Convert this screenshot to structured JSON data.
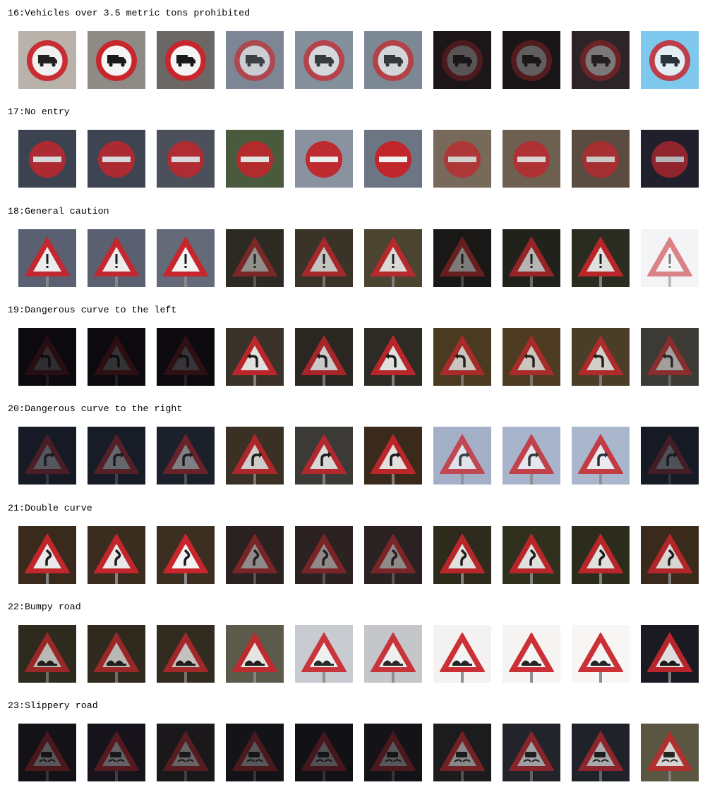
{
  "rows": [
    {
      "title": "16:Vehicles over 3.5 metric tons prohibited",
      "sign": "vehicles-over-3.5t-prohibited-sign",
      "images": [
        {
          "bg": "#b8b2aa",
          "bright": 0.95
        },
        {
          "bg": "#8e8a86",
          "bright": 1.0
        },
        {
          "bg": "#6a6764",
          "bright": 1.0
        },
        {
          "bg": "#7c8694",
          "bright": 0.65
        },
        {
          "bg": "#84909c",
          "bright": 0.72
        },
        {
          "bg": "#7c8894",
          "bright": 0.72
        },
        {
          "bg": "#1c1618",
          "bright": 0.28
        },
        {
          "bg": "#1a1618",
          "bright": 0.32
        },
        {
          "bg": "#2c2426",
          "bright": 0.4
        },
        {
          "bg": "#7ec8ee",
          "bright": 0.85
        }
      ]
    },
    {
      "title": "17:No entry",
      "sign": "no-entry-sign",
      "images": [
        {
          "bg": "#3c4250",
          "bright": 0.85
        },
        {
          "bg": "#3e4452",
          "bright": 0.85
        },
        {
          "bg": "#4c505a",
          "bright": 0.85
        },
        {
          "bg": "#4a5a3c",
          "bright": 0.9
        },
        {
          "bg": "#8a92a0",
          "bright": 0.95
        },
        {
          "bg": "#6c7682",
          "bright": 1.0
        },
        {
          "bg": "#786a5a",
          "bright": 0.75
        },
        {
          "bg": "#6e6050",
          "bright": 0.8
        },
        {
          "bg": "#5a4c40",
          "bright": 0.75
        },
        {
          "bg": "#20202c",
          "bright": 0.7
        }
      ]
    },
    {
      "title": "18:General caution",
      "sign": "general-caution-sign",
      "images": [
        {
          "bg": "#5a6072",
          "bright": 0.95
        },
        {
          "bg": "#5a6070",
          "bright": 0.95
        },
        {
          "bg": "#646a78",
          "bright": 1.0
        },
        {
          "bg": "#2c2a22",
          "bright": 0.5
        },
        {
          "bg": "#3a3428",
          "bright": 0.75
        },
        {
          "bg": "#4a4430",
          "bright": 0.85
        },
        {
          "bg": "#1a1816",
          "bright": 0.45
        },
        {
          "bg": "#22221c",
          "bright": 0.7
        },
        {
          "bg": "#2a2c20",
          "bright": 0.9
        },
        {
          "bg": "#f4f4f6",
          "bright": 0.55
        }
      ]
    },
    {
      "title": "19:Dangerous curve to the left",
      "sign": "dangerous-curve-left-sign",
      "images": [
        {
          "bg": "#0c0a0e",
          "bright": 0.15
        },
        {
          "bg": "#0c0a0e",
          "bright": 0.17
        },
        {
          "bg": "#0c0a0e",
          "bright": 0.18
        },
        {
          "bg": "#3a3228",
          "bright": 0.9
        },
        {
          "bg": "#2a2622",
          "bright": 0.8
        },
        {
          "bg": "#2e2a24",
          "bright": 0.9
        },
        {
          "bg": "#4a3a20",
          "bright": 0.75
        },
        {
          "bg": "#4e3c22",
          "bright": 0.75
        },
        {
          "bg": "#4a3e28",
          "bright": 0.8
        },
        {
          "bg": "#3c3a34",
          "bright": 0.55
        }
      ]
    },
    {
      "title": "20:Dangerous curve to the right",
      "sign": "dangerous-curve-right-sign",
      "images": [
        {
          "bg": "#161a24",
          "bright": 0.28
        },
        {
          "bg": "#181c26",
          "bright": 0.35
        },
        {
          "bg": "#1c202a",
          "bright": 0.45
        },
        {
          "bg": "#3a3024",
          "bright": 0.8
        },
        {
          "bg": "#3c3a36",
          "bright": 0.85
        },
        {
          "bg": "#3a2a1c",
          "bright": 0.9
        },
        {
          "bg": "#a4b0c8",
          "bright": 0.75
        },
        {
          "bg": "#a8b4cc",
          "bright": 0.8
        },
        {
          "bg": "#aab6cc",
          "bright": 0.85
        },
        {
          "bg": "#161a24",
          "bright": 0.25
        }
      ]
    },
    {
      "title": "21:Double curve",
      "sign": "double-curve-sign",
      "images": [
        {
          "bg": "#3a2a1c",
          "bright": 0.95
        },
        {
          "bg": "#3a2c1e",
          "bright": 0.95
        },
        {
          "bg": "#3c2e20",
          "bright": 1.0
        },
        {
          "bg": "#2a2220",
          "bright": 0.5
        },
        {
          "bg": "#2c2222",
          "bright": 0.5
        },
        {
          "bg": "#2a2222",
          "bright": 0.5
        },
        {
          "bg": "#2e2a1c",
          "bright": 0.9
        },
        {
          "bg": "#30301e",
          "bright": 0.9
        },
        {
          "bg": "#2c2c1c",
          "bright": 0.9
        },
        {
          "bg": "#3a2a1c",
          "bright": 0.85
        }
      ]
    },
    {
      "title": "22:Bumpy road",
      "sign": "bumpy-road-sign",
      "images": [
        {
          "bg": "#2e2a1e",
          "bright": 0.7
        },
        {
          "bg": "#302a1e",
          "bright": 0.7
        },
        {
          "bg": "#322c20",
          "bright": 0.75
        },
        {
          "bg": "#5c5a4a",
          "bright": 0.9
        },
        {
          "bg": "#c8ccd0",
          "bright": 0.9
        },
        {
          "bg": "#c4c6ca",
          "bright": 0.9
        },
        {
          "bg": "#f4f2f0",
          "bright": 0.95
        },
        {
          "bg": "#f6f4f2",
          "bright": 0.95
        },
        {
          "bg": "#f8f6f4",
          "bright": 0.95
        },
        {
          "bg": "#1a1a22",
          "bright": 0.9
        }
      ]
    },
    {
      "title": "23:Slippery road",
      "sign": "slippery-road-sign",
      "images": [
        {
          "bg": "#141216",
          "bright": 0.3
        },
        {
          "bg": "#16141a",
          "bright": 0.35
        },
        {
          "bg": "#1a181a",
          "bright": 0.35
        },
        {
          "bg": "#141418",
          "bright": 0.3
        },
        {
          "bg": "#121216",
          "bright": 0.28
        },
        {
          "bg": "#141418",
          "bright": 0.3
        },
        {
          "bg": "#1c1c1e",
          "bright": 0.5
        },
        {
          "bg": "#22242a",
          "bright": 0.6
        },
        {
          "bg": "#20222a",
          "bright": 0.65
        },
        {
          "bg": "#5a5642",
          "bright": 0.8
        }
      ]
    }
  ]
}
